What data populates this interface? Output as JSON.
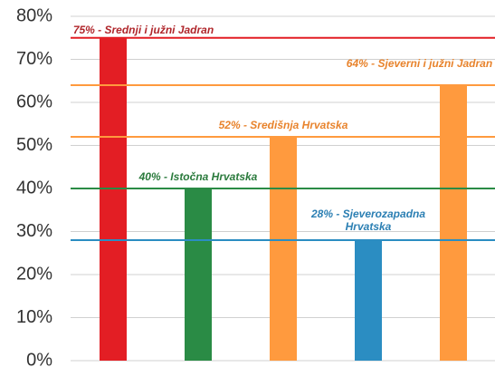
{
  "chart_data": {
    "type": "bar",
    "categories": [
      null,
      null,
      null,
      null,
      null
    ],
    "values": [
      75,
      40,
      52,
      28,
      64
    ],
    "value_labels": [
      "75% - Srednji i južni Jadran",
      "40% - Istočna Hrvatska",
      "52% - Središnja Hrvatska",
      "28% - Sjeverozapadna Hrvatska",
      "64% - Sjeverni i južni Jadran"
    ],
    "colors": [
      "#e31e24",
      "#2a8b45",
      "#ff9a3e",
      "#2b8dc2",
      "#ff9a3e"
    ],
    "label_colors": [
      "#b0262b",
      "#2a7a3c",
      "#e8832c",
      "#2b7fb3",
      "#e8832c"
    ],
    "ylim": [
      0,
      80
    ],
    "yticks": [
      {
        "value": 0,
        "label": "0%"
      },
      {
        "value": 10,
        "label": "10%"
      },
      {
        "value": 20,
        "label": "20%"
      },
      {
        "value": 30,
        "label": "30%"
      },
      {
        "value": 40,
        "label": "40%"
      },
      {
        "value": 50,
        "label": "50%"
      },
      {
        "value": 60,
        "label": "60%"
      },
      {
        "value": 70,
        "label": "70%"
      },
      {
        "value": 80,
        "label": "80%"
      }
    ],
    "grid": true
  }
}
